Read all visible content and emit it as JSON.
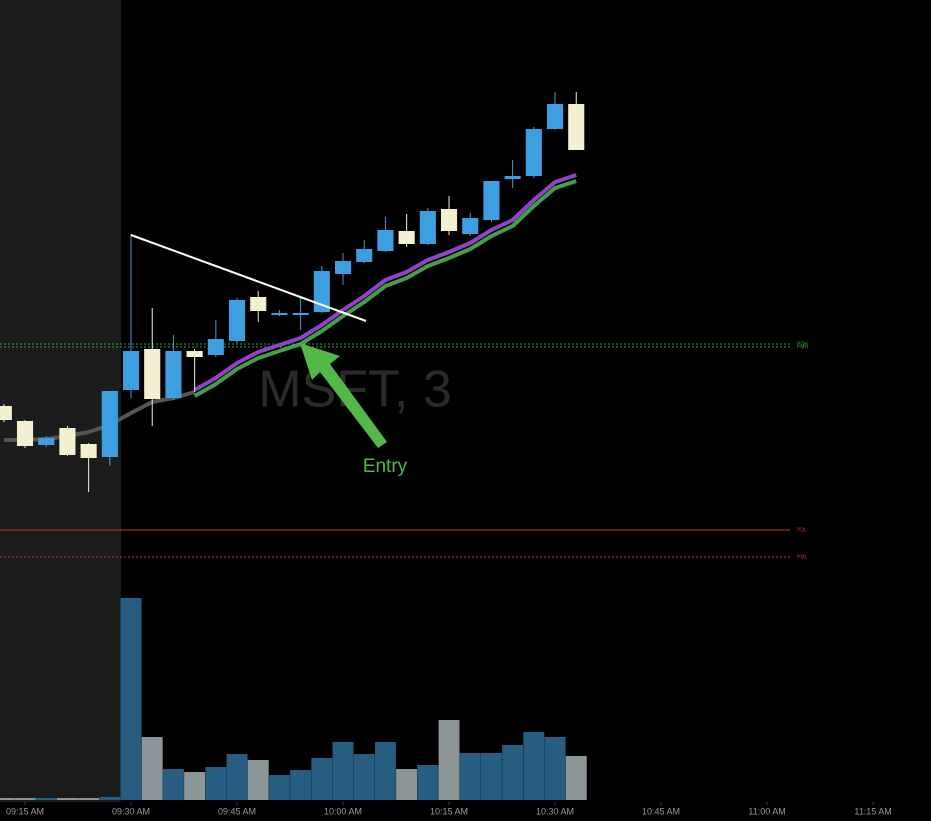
{
  "chart_data": {
    "type": "candlestick",
    "watermark": "MSFT, 3",
    "annotation": {
      "text": "Entry",
      "color": "#52b848"
    },
    "xlim": [
      551.46,
      683.2
    ],
    "xticks": [
      {
        "value": 555,
        "label": "09:15 AM"
      },
      {
        "value": 570,
        "label": "09:30 AM"
      },
      {
        "value": 585,
        "label": "09:45 AM"
      },
      {
        "value": 600,
        "label": "10:00 AM"
      },
      {
        "value": 615,
        "label": "10:15 AM"
      },
      {
        "value": 630,
        "label": "10:30 AM"
      },
      {
        "value": 645,
        "label": "10:45 AM"
      },
      {
        "value": 660,
        "label": "11:00 AM"
      },
      {
        "value": 675,
        "label": "11:15 AM"
      }
    ],
    "ylim": [
      0,
      590
    ],
    "vlim": [
      0,
      210
    ],
    "up_color": "#3d9ee0",
    "down_color": "#f4f0d2",
    "volume_up_color": "#275d80",
    "volume_down_color": "#8c9696",
    "x": [
      552,
      555,
      558,
      561,
      564,
      567,
      570,
      573,
      576,
      579,
      582,
      585,
      588,
      591,
      594,
      597,
      600,
      603,
      606,
      609,
      612,
      615,
      618,
      621,
      624,
      627,
      630,
      633
    ],
    "open": [
      184,
      169,
      145,
      162,
      146,
      133,
      200,
      241,
      192,
      239,
      235,
      249,
      293,
      275,
      275,
      278,
      316,
      328,
      339,
      359,
      346,
      381,
      356,
      370,
      411,
      414,
      461,
      486
    ],
    "high": [
      186,
      170,
      154,
      164,
      147,
      199,
      356,
      282,
      255,
      241,
      270,
      292,
      299,
      280,
      294,
      324,
      337,
      350,
      373,
      376,
      382,
      394,
      377,
      409,
      430,
      463,
      498,
      498
    ],
    "low": [
      168,
      142,
      143,
      134,
      98,
      124,
      192,
      164,
      190,
      198,
      233,
      247,
      268,
      274,
      260,
      277,
      305,
      327,
      338,
      343,
      345,
      355,
      354,
      368,
      402,
      412,
      460,
      440
    ],
    "close": [
      170,
      144,
      152,
      135,
      132,
      199,
      239,
      191,
      239,
      233,
      251,
      290,
      279,
      277,
      277,
      319,
      329,
      341,
      360,
      346,
      379,
      359,
      372,
      409,
      414,
      461,
      486,
      440
    ],
    "volume": [
      2,
      2,
      2,
      2,
      2,
      3,
      202,
      63,
      31,
      28,
      33,
      46,
      40,
      25,
      30,
      42,
      58,
      46,
      58,
      31,
      35,
      80,
      47,
      47,
      55,
      68,
      63,
      44
    ],
    "lines": [
      {
        "color": "#555555",
        "values": [
          150,
          150,
          151,
          154,
          158,
          165,
          177,
          188,
          192,
          198,
          null,
          null,
          null,
          null,
          null,
          null,
          null,
          null,
          null,
          null,
          null,
          null,
          null,
          null,
          null,
          null,
          null,
          null
        ]
      },
      {
        "color": "#43a047",
        "values": [
          null,
          null,
          null,
          null,
          null,
          null,
          null,
          null,
          null,
          194,
          206,
          221,
          232,
          239,
          246,
          259,
          274,
          288,
          304,
          312,
          324,
          332,
          341,
          354,
          364,
          384,
          402,
          409
        ]
      },
      {
        "color": "#8e44c9",
        "values": [
          null,
          null,
          null,
          null,
          null,
          null,
          null,
          null,
          null,
          200,
          212,
          227,
          238,
          245,
          252,
          265,
          280,
          294,
          310,
          318,
          330,
          338,
          347,
          360,
          370,
          390,
          408,
          415
        ]
      }
    ],
    "trendline": {
      "color": "#ffffff",
      "x": [
        570,
        603.25
      ],
      "values": [
        355,
        269
      ]
    },
    "levels": [
      {
        "label": "PDH",
        "value": 246,
        "color": "#3a9a45",
        "dash": "2,2"
      },
      {
        "label": "PMH",
        "value": 243,
        "color": "#3a9a45",
        "dash": "2,2"
      },
      {
        "label": "PDL",
        "value": 60,
        "color": "#c0392b",
        "dash": "none"
      },
      {
        "label": "PML",
        "value": 33,
        "color": "#c0392b",
        "dash": "2,2"
      }
    ]
  }
}
